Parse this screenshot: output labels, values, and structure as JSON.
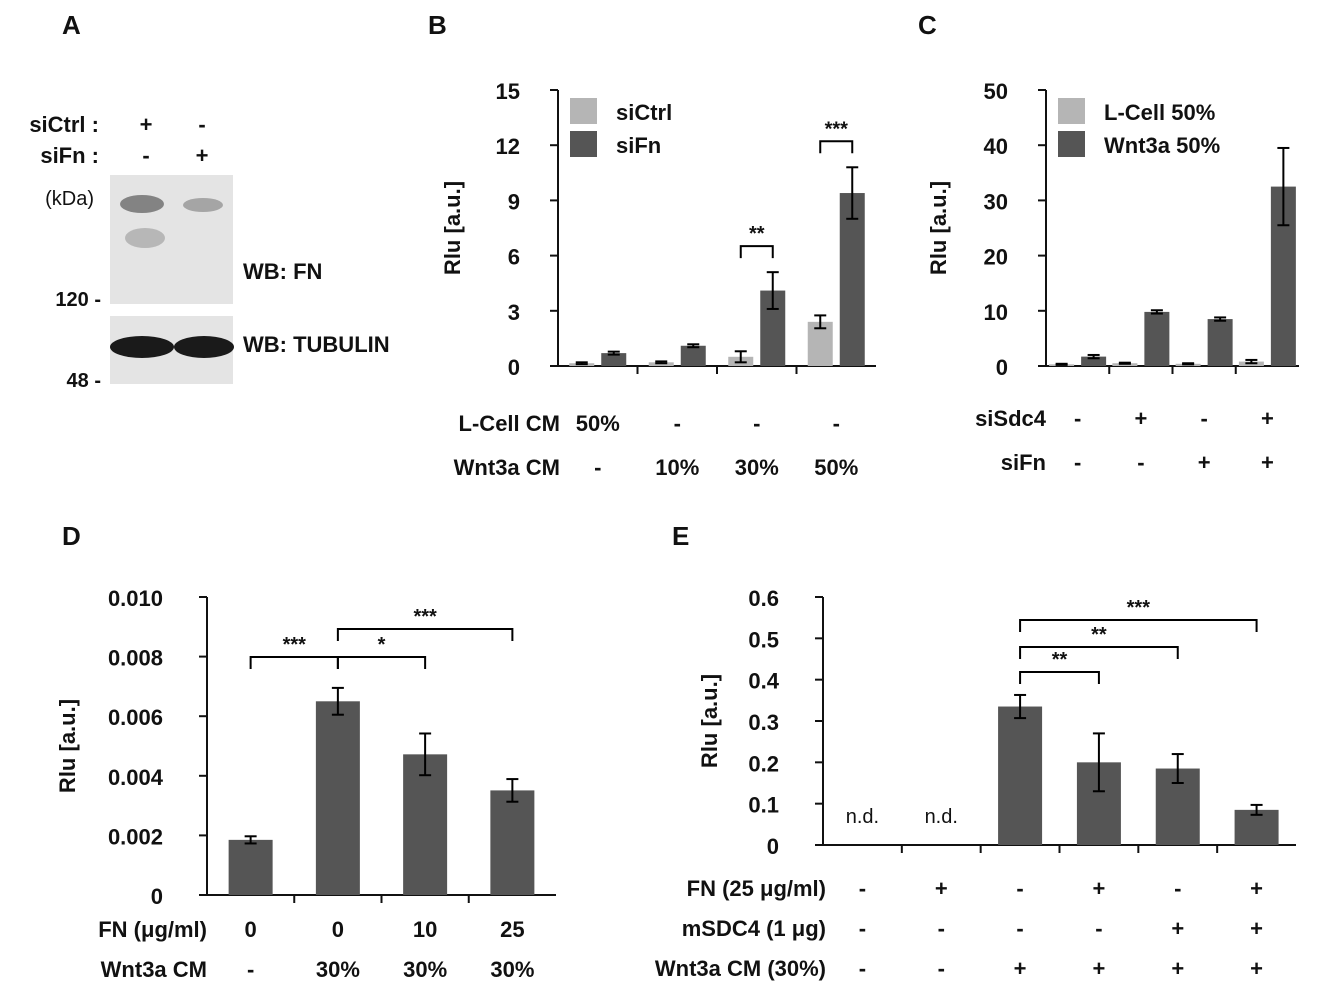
{
  "colors": {
    "bar_dark": "#555555",
    "bar_light": "#b5b5b5",
    "axis": "#111111",
    "blot_bg": "#e4e4e4",
    "blot_band": "#1a1a1a"
  },
  "panel_A": {
    "letter": "A",
    "rows": [
      {
        "label": "siCtrl :",
        "lanes": [
          "+",
          "-"
        ]
      },
      {
        "label": "siFn :",
        "lanes": [
          "-",
          "+"
        ]
      }
    ],
    "kda": "(kDa)",
    "markers": [
      "120 -",
      "48 -"
    ],
    "labels": [
      "WB: FN",
      "WB: TUBULIN"
    ]
  },
  "chart_data": [
    {
      "panel": "B",
      "type": "bar",
      "ylabel": "Rlu [a.u.]",
      "ylim": [
        0,
        15
      ],
      "yticks": [
        "0",
        "3",
        "6",
        "9",
        "12",
        "15"
      ],
      "legend": [
        "siCtrl",
        "siFn"
      ],
      "legend_position": "top-left",
      "series": [
        {
          "name": "siCtrl",
          "values": [
            0.15,
            0.2,
            0.5,
            2.4
          ],
          "errors": [
            0.05,
            0.05,
            0.3,
            0.35
          ]
        },
        {
          "name": "siFn",
          "values": [
            0.7,
            1.1,
            4.1,
            9.4
          ],
          "errors": [
            0.08,
            0.08,
            1.0,
            1.4
          ]
        }
      ],
      "significance": [
        {
          "group": 2,
          "label": "**"
        },
        {
          "group": 3,
          "label": "***"
        }
      ],
      "conditions": [
        {
          "label": "L-Cell CM",
          "values": [
            "50%",
            "-",
            "-",
            "-"
          ]
        },
        {
          "label": "Wnt3a CM",
          "values": [
            "-",
            "10%",
            "30%",
            "50%"
          ]
        }
      ]
    },
    {
      "panel": "C",
      "type": "bar",
      "ylabel": "Rlu [a.u.]",
      "ylim": [
        0,
        50
      ],
      "yticks": [
        "0",
        "10",
        "20",
        "30",
        "40",
        "50"
      ],
      "legend": [
        "L-Cell 50%",
        "Wnt3a 50%"
      ],
      "legend_position": "top-left",
      "series": [
        {
          "name": "L-Cell 50%",
          "values": [
            0.3,
            0.5,
            0.4,
            0.8
          ],
          "errors": [
            0.1,
            0.1,
            0.1,
            0.3
          ]
        },
        {
          "name": "Wnt3a 50%",
          "values": [
            1.7,
            9.8,
            8.5,
            32.5
          ],
          "errors": [
            0.3,
            0.3,
            0.3,
            7.0
          ]
        }
      ],
      "conditions": [
        {
          "label": "siSdc4",
          "values": [
            "-",
            "+",
            "-",
            "+"
          ]
        },
        {
          "label": "siFn",
          "values": [
            "-",
            "-",
            "+",
            "+"
          ]
        }
      ]
    },
    {
      "panel": "D",
      "type": "bar",
      "ylabel": "Rlu [a.u.]",
      "ylim": [
        0,
        0.01
      ],
      "yticks": [
        "0",
        "0.002",
        "0.004",
        "0.006",
        "0.008",
        "0.010"
      ],
      "values": [
        0.00185,
        0.0065,
        0.00472,
        0.00351
      ],
      "errors": [
        0.00012,
        0.00045,
        0.0007,
        0.00038
      ],
      "significance": [
        {
          "from": 0,
          "to": 1,
          "label": "***"
        },
        {
          "from": 1,
          "to": 2,
          "label": "*"
        },
        {
          "from": 1,
          "to": 3,
          "label": "***"
        }
      ],
      "conditions": [
        {
          "label": "FN (μg/ml)",
          "values": [
            "0",
            "0",
            "10",
            "25"
          ]
        },
        {
          "label": "Wnt3a CM",
          "values": [
            "-",
            "30%",
            "30%",
            "30%"
          ]
        }
      ]
    },
    {
      "panel": "E",
      "type": "bar",
      "ylabel": "Rlu [a.u.]",
      "ylim": [
        0,
        0.6
      ],
      "yticks": [
        "0",
        "0.1",
        "0.2",
        "0.3",
        "0.4",
        "0.5",
        "0.6"
      ],
      "values": [
        null,
        null,
        0.335,
        0.2,
        0.185,
        0.085
      ],
      "errors": [
        null,
        null,
        0.028,
        0.07,
        0.035,
        0.012
      ],
      "not_determined": [
        "n.d.",
        "n.d."
      ],
      "significance": [
        {
          "from": 2,
          "to": 3,
          "label": "**"
        },
        {
          "from": 2,
          "to": 4,
          "label": "**"
        },
        {
          "from": 2,
          "to": 5,
          "label": "***"
        }
      ],
      "conditions": [
        {
          "label": "FN (25 μg/ml)",
          "values": [
            "-",
            "+",
            "-",
            "+",
            "-",
            "+"
          ]
        },
        {
          "label": "mSDC4 (1 μg)",
          "values": [
            "-",
            "-",
            "-",
            "-",
            "+",
            "+"
          ]
        },
        {
          "label": "Wnt3a CM (30%)",
          "values": [
            "-",
            "-",
            "+",
            "+",
            "+",
            "+"
          ]
        }
      ]
    }
  ]
}
